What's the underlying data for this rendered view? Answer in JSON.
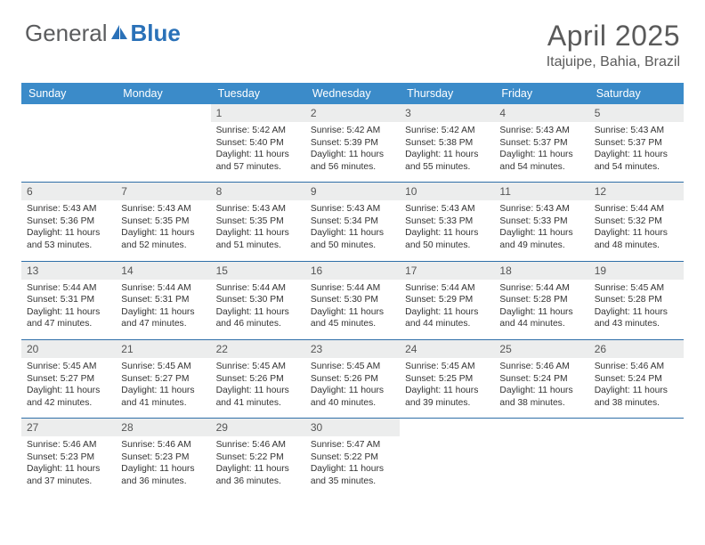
{
  "brand": {
    "part1": "General",
    "part2": "Blue"
  },
  "title": "April 2025",
  "location": "Itajuipe, Bahia, Brazil",
  "colors": {
    "header_bg": "#3b8bc9",
    "header_text": "#ffffff",
    "row_divider": "#2f6fa8",
    "daynum_bg": "#eceded",
    "text": "#333333",
    "title_text": "#5a5a5a",
    "brand_gray": "#58595b",
    "brand_blue": "#2a71b8",
    "background": "#ffffff"
  },
  "typography": {
    "title_fontsize": 32,
    "location_fontsize": 16,
    "header_fontsize": 12.5,
    "cell_fontsize": 10.3
  },
  "wd": [
    "Sunday",
    "Monday",
    "Tuesday",
    "Wednesday",
    "Thursday",
    "Friday",
    "Saturday"
  ],
  "weeks": [
    [
      null,
      null,
      {
        "n": "1",
        "r": "5:42 AM",
        "s": "5:40 PM",
        "d": "11 hours and 57 minutes."
      },
      {
        "n": "2",
        "r": "5:42 AM",
        "s": "5:39 PM",
        "d": "11 hours and 56 minutes."
      },
      {
        "n": "3",
        "r": "5:42 AM",
        "s": "5:38 PM",
        "d": "11 hours and 55 minutes."
      },
      {
        "n": "4",
        "r": "5:43 AM",
        "s": "5:37 PM",
        "d": "11 hours and 54 minutes."
      },
      {
        "n": "5",
        "r": "5:43 AM",
        "s": "5:37 PM",
        "d": "11 hours and 54 minutes."
      }
    ],
    [
      {
        "n": "6",
        "r": "5:43 AM",
        "s": "5:36 PM",
        "d": "11 hours and 53 minutes."
      },
      {
        "n": "7",
        "r": "5:43 AM",
        "s": "5:35 PM",
        "d": "11 hours and 52 minutes."
      },
      {
        "n": "8",
        "r": "5:43 AM",
        "s": "5:35 PM",
        "d": "11 hours and 51 minutes."
      },
      {
        "n": "9",
        "r": "5:43 AM",
        "s": "5:34 PM",
        "d": "11 hours and 50 minutes."
      },
      {
        "n": "10",
        "r": "5:43 AM",
        "s": "5:33 PM",
        "d": "11 hours and 50 minutes."
      },
      {
        "n": "11",
        "r": "5:43 AM",
        "s": "5:33 PM",
        "d": "11 hours and 49 minutes."
      },
      {
        "n": "12",
        "r": "5:44 AM",
        "s": "5:32 PM",
        "d": "11 hours and 48 minutes."
      }
    ],
    [
      {
        "n": "13",
        "r": "5:44 AM",
        "s": "5:31 PM",
        "d": "11 hours and 47 minutes."
      },
      {
        "n": "14",
        "r": "5:44 AM",
        "s": "5:31 PM",
        "d": "11 hours and 47 minutes."
      },
      {
        "n": "15",
        "r": "5:44 AM",
        "s": "5:30 PM",
        "d": "11 hours and 46 minutes."
      },
      {
        "n": "16",
        "r": "5:44 AM",
        "s": "5:30 PM",
        "d": "11 hours and 45 minutes."
      },
      {
        "n": "17",
        "r": "5:44 AM",
        "s": "5:29 PM",
        "d": "11 hours and 44 minutes."
      },
      {
        "n": "18",
        "r": "5:44 AM",
        "s": "5:28 PM",
        "d": "11 hours and 44 minutes."
      },
      {
        "n": "19",
        "r": "5:45 AM",
        "s": "5:28 PM",
        "d": "11 hours and 43 minutes."
      }
    ],
    [
      {
        "n": "20",
        "r": "5:45 AM",
        "s": "5:27 PM",
        "d": "11 hours and 42 minutes."
      },
      {
        "n": "21",
        "r": "5:45 AM",
        "s": "5:27 PM",
        "d": "11 hours and 41 minutes."
      },
      {
        "n": "22",
        "r": "5:45 AM",
        "s": "5:26 PM",
        "d": "11 hours and 41 minutes."
      },
      {
        "n": "23",
        "r": "5:45 AM",
        "s": "5:26 PM",
        "d": "11 hours and 40 minutes."
      },
      {
        "n": "24",
        "r": "5:45 AM",
        "s": "5:25 PM",
        "d": "11 hours and 39 minutes."
      },
      {
        "n": "25",
        "r": "5:46 AM",
        "s": "5:24 PM",
        "d": "11 hours and 38 minutes."
      },
      {
        "n": "26",
        "r": "5:46 AM",
        "s": "5:24 PM",
        "d": "11 hours and 38 minutes."
      }
    ],
    [
      {
        "n": "27",
        "r": "5:46 AM",
        "s": "5:23 PM",
        "d": "11 hours and 37 minutes."
      },
      {
        "n": "28",
        "r": "5:46 AM",
        "s": "5:23 PM",
        "d": "11 hours and 36 minutes."
      },
      {
        "n": "29",
        "r": "5:46 AM",
        "s": "5:22 PM",
        "d": "11 hours and 36 minutes."
      },
      {
        "n": "30",
        "r": "5:47 AM",
        "s": "5:22 PM",
        "d": "11 hours and 35 minutes."
      },
      null,
      null,
      null
    ]
  ],
  "labels": {
    "sunrise": "Sunrise:",
    "sunset": "Sunset:",
    "daylight": "Daylight:"
  }
}
